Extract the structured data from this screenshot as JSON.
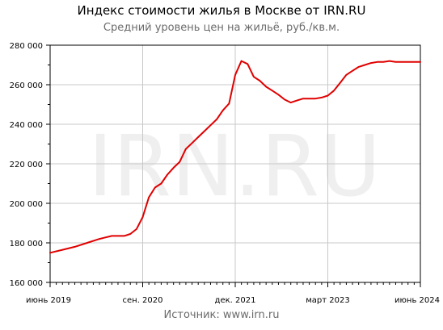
{
  "chart_data": {
    "type": "line",
    "title": "Индекс стоимости жилья в Москве от IRN.RU",
    "subtitle": "Средний уровень цен на жильё, руб./кв.м.",
    "watermark": "IRN.RU",
    "source": "Источник: www.irn.ru",
    "ylim": [
      160000,
      280000
    ],
    "y_ticks": [
      160000,
      180000,
      200000,
      220000,
      240000,
      260000,
      280000
    ],
    "y_tick_labels": [
      "160 000",
      "180 000",
      "200 000",
      "220 000",
      "240 000",
      "260 000",
      "280 000"
    ],
    "xlim": [
      "2019-06",
      "2024-06"
    ],
    "x_ticks": [
      "2019-06",
      "2020-09",
      "2021-12",
      "2023-03",
      "2024-06"
    ],
    "x_tick_labels": [
      "июнь 2019",
      "сен. 2020",
      "дек. 2021",
      "март 2023",
      "июнь 2024"
    ],
    "grid": true,
    "line_color": "#e00000",
    "series": [
      {
        "x": [
          "2019-06",
          "2019-08",
          "2019-10",
          "2019-12",
          "2020-02",
          "2020-04",
          "2020-06",
          "2020-07",
          "2020-08",
          "2020-09",
          "2020-10",
          "2020-11",
          "2020-12",
          "2021-01",
          "2021-02",
          "2021-03",
          "2021-04",
          "2021-05",
          "2021-06",
          "2021-07",
          "2021-08",
          "2021-09",
          "2021-10",
          "2021-11",
          "2021-12",
          "2022-01",
          "2022-02",
          "2022-03",
          "2022-04",
          "2022-05",
          "2022-06",
          "2022-07",
          "2022-08",
          "2022-09",
          "2022-10",
          "2022-11",
          "2022-12",
          "2023-01",
          "2023-02",
          "2023-03",
          "2023-04",
          "2023-05",
          "2023-06",
          "2023-07",
          "2023-08",
          "2023-09",
          "2023-10",
          "2023-11",
          "2023-12",
          "2024-01",
          "2024-02",
          "2024-03",
          "2024-04",
          "2024-05",
          "2024-06"
        ],
        "values": [
          175000,
          176500,
          178000,
          180000,
          182000,
          183500,
          183500,
          184500,
          187000,
          193000,
          203000,
          208000,
          210000,
          214500,
          218000,
          221000,
          227500,
          230500,
          233500,
          236500,
          239500,
          242500,
          247000,
          250500,
          265000,
          272000,
          270500,
          264000,
          262000,
          259000,
          257000,
          255000,
          252500,
          251000,
          252000,
          253000,
          253000,
          253000,
          253500,
          254500,
          257000,
          261000,
          265000,
          267000,
          269000,
          270000,
          271000,
          271500,
          271500,
          272000,
          271500,
          271500,
          271500,
          271500,
          271500
        ]
      }
    ]
  }
}
